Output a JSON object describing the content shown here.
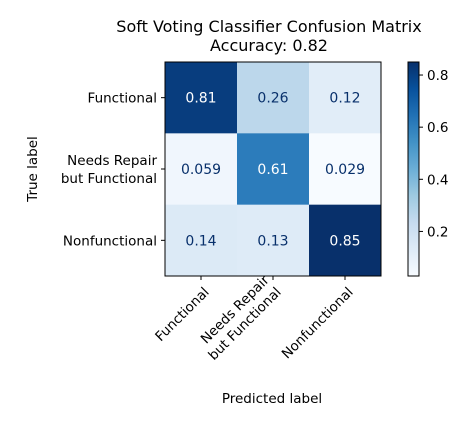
{
  "chart_data": {
    "type": "heatmap",
    "title": "Soft Voting Classifier Confusion Matrix",
    "subtitle": "Accuracy: 0.82",
    "xlabel": "Predicted label",
    "ylabel": "True label",
    "row_labels": [
      [
        "Functional"
      ],
      [
        "Needs Repair",
        "but Functional"
      ],
      [
        "Nonfunctional"
      ]
    ],
    "col_labels": [
      [
        "Functional"
      ],
      [
        "Needs Repair",
        "but Functional"
      ],
      [
        "Nonfunctional"
      ]
    ],
    "values": [
      [
        0.81,
        0.26,
        0.12
      ],
      [
        0.059,
        0.61,
        0.029
      ],
      [
        0.14,
        0.13,
        0.85
      ]
    ],
    "cell_labels": [
      [
        "0.81",
        "0.26",
        "0.12"
      ],
      [
        "0.059",
        "0.61",
        "0.029"
      ],
      [
        "0.14",
        "0.13",
        "0.85"
      ]
    ],
    "colormap": "Blues",
    "colorbar": {
      "range": [
        0.029,
        0.85
      ],
      "ticks": [
        0.2,
        0.4,
        0.6,
        0.8
      ],
      "tick_labels": [
        "0.2",
        "0.4",
        "0.6",
        "0.8"
      ]
    },
    "colors": {
      "low": "#f7fbff",
      "high": "#08306b",
      "text_on_light": "#08306b",
      "text_on_dark": "#ffffff"
    }
  }
}
